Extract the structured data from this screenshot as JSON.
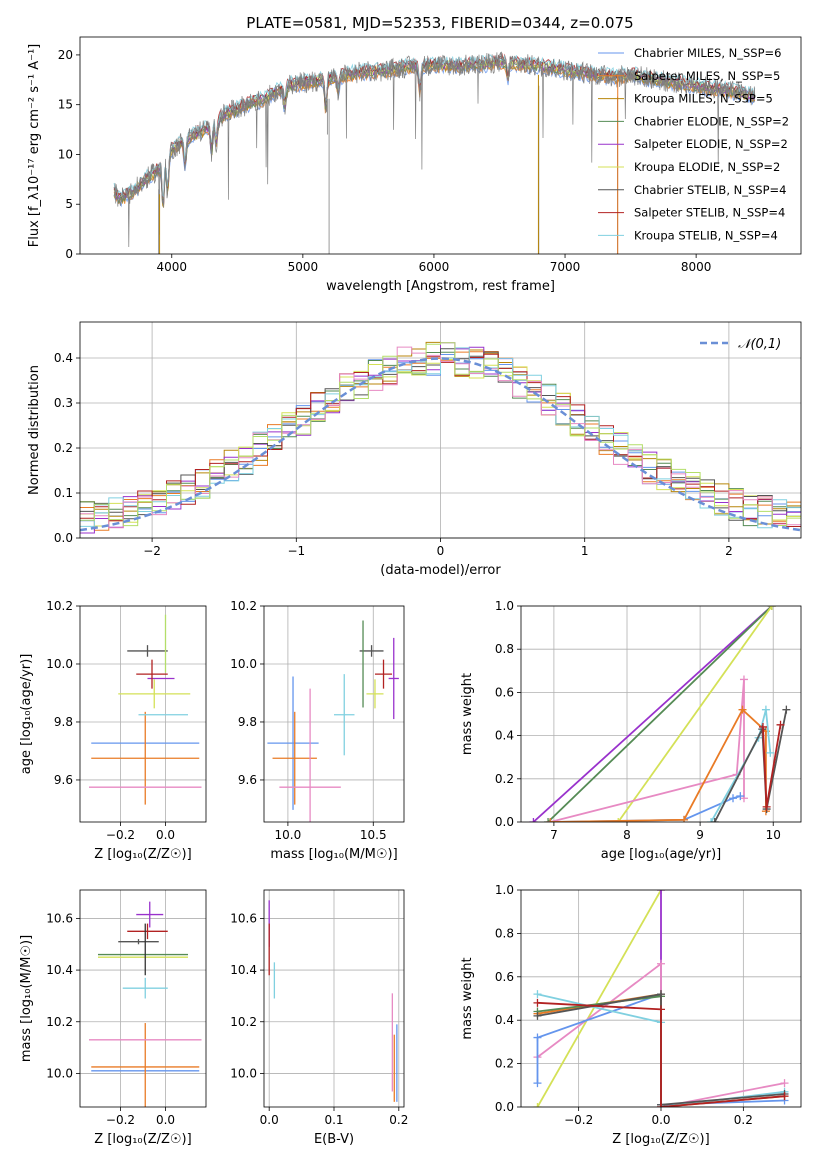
{
  "page": {
    "title": "PLATE=0581, MJD=52353, FIBERID=0344, z=0.075"
  },
  "chart_data": [
    {
      "id": "spectrum",
      "type": "line",
      "title": "PLATE=0581, MJD=52353, FIBERID=0344, z=0.075",
      "xlabel": "wavelength [Angstrom, rest frame]",
      "ylabel": "Flux [f_λ10⁻¹⁷ erg cm⁻² s⁻¹ A⁻¹]",
      "xlim": [
        3300,
        8800
      ],
      "ylim": [
        0,
        21.8
      ],
      "xticks": [
        "4000",
        "5000",
        "6000",
        "7000",
        "8000"
      ],
      "xtick_values": [
        4000,
        5000,
        6000,
        7000,
        8000
      ],
      "yticks": [
        "0",
        "5",
        "10",
        "15",
        "20"
      ],
      "ytick_values": [
        0,
        5,
        10,
        15,
        20
      ],
      "grid": false,
      "legend_position": "right",
      "data_continuum": {
        "x": [
          3550,
          3600,
          3700,
          3800,
          3900,
          4000,
          4100,
          4200,
          4300,
          4400,
          4500,
          4600,
          4700,
          4800,
          4900,
          5000,
          5100,
          5200,
          5300,
          5400,
          5500,
          5600,
          5700,
          5800,
          5900,
          6000,
          6100,
          6200,
          6300,
          6400,
          6500,
          6600,
          6700,
          6800,
          6900,
          7000,
          7100,
          7200,
          7300,
          7400,
          7500,
          7600,
          7700,
          7800,
          7900,
          8000,
          8100,
          8200,
          8300,
          8400,
          8450
        ],
        "y": [
          6.5,
          5.5,
          6.2,
          7.5,
          8.5,
          10.5,
          11.5,
          12.2,
          12.8,
          14.0,
          14.6,
          15.2,
          15.5,
          16.4,
          17.0,
          17.2,
          17.4,
          17.6,
          17.9,
          18.2,
          18.3,
          18.4,
          18.6,
          18.8,
          18.9,
          19.0,
          19.0,
          18.9,
          19.0,
          19.1,
          19.3,
          19.2,
          19.0,
          18.9,
          18.7,
          18.5,
          18.3,
          18.1,
          17.9,
          17.8,
          18.0,
          17.8,
          17.5,
          17.3,
          17.1,
          16.9,
          16.7,
          16.5,
          16.3,
          16.0,
          15.8
        ]
      },
      "series": [
        {
          "name": "Chabrier MILES, N_SSP=6",
          "color": "#6495ed"
        },
        {
          "name": "Salpeter MILES, N_SSP=5",
          "color": "#e97b26"
        },
        {
          "name": "Kroupa MILES, N_SSP=5",
          "color": "#b8860b"
        },
        {
          "name": "Chabrier ELODIE, N_SSP=2",
          "color": "#558b55"
        },
        {
          "name": "Salpeter ELODIE, N_SSP=2",
          "color": "#9932cc"
        },
        {
          "name": "Kroupa ELODIE, N_SSP=2",
          "color": "#d4e157"
        },
        {
          "name": "Chabrier STELIB, N_SSP=4",
          "color": "#555555"
        },
        {
          "name": "Salpeter STELIB, N_SSP=4",
          "color": "#b22222"
        },
        {
          "name": "Kroupa STELIB, N_SSP=4",
          "color": "#80d0e0"
        }
      ]
    },
    {
      "id": "residuals",
      "type": "histogram",
      "xlabel": "(data-model)/error",
      "ylabel": "Normed distribution",
      "xlim": [
        -2.5,
        2.5
      ],
      "ylim": [
        0,
        0.48
      ],
      "xticks": [
        "−2",
        "−1",
        "0",
        "1",
        "2"
      ],
      "xtick_values": [
        -2,
        -1,
        0,
        1,
        2
      ],
      "yticks": [
        "0.0",
        "0.1",
        "0.2",
        "0.3",
        "0.4"
      ],
      "ytick_values": [
        0,
        0.1,
        0.2,
        0.3,
        0.4
      ],
      "grid": true,
      "legend": {
        "label": "𝒩(0,1)",
        "position": "top-right",
        "color": "#6a8fd6"
      },
      "bin_width": 0.1
    },
    {
      "id": "z-age",
      "type": "errorbar",
      "xlabel": "Z [log₁₀(Z/Z☉)]",
      "ylabel": "age  [log₁₀(age/yr)]",
      "xlim": [
        -0.38,
        0.18
      ],
      "ylim": [
        9.455,
        10.2
      ],
      "xticks": [
        "−0.2",
        "0.0"
      ],
      "xtick_values": [
        -0.2,
        0.0
      ],
      "yticks": [
        "9.6",
        "9.8",
        "10.0",
        "10.2"
      ],
      "ytick_values": [
        9.6,
        9.8,
        10.0,
        10.2
      ],
      "grid": true,
      "points": [
        {
          "x": -0.09,
          "xerr": 0.24,
          "y": 9.727,
          "yerr": 0.0,
          "color": "#6495ed"
        },
        {
          "x": -0.09,
          "xerr": 0.24,
          "y": 9.675,
          "yerr": 0.16,
          "color": "#e97b26"
        },
        {
          "x": -0.09,
          "xerr": 0.25,
          "y": 9.575,
          "yerr": 0.0,
          "color": "#e78ac3"
        },
        {
          "x": -0.01,
          "xerr": 0.11,
          "y": 9.825,
          "yerr": 0.0,
          "color": "#80d0e0"
        },
        {
          "x": -0.05,
          "xerr": 0.16,
          "y": 9.897,
          "yerr": 0.05,
          "color": "#d4e157"
        },
        {
          "x": -0.02,
          "xerr": 0.06,
          "y": 9.95,
          "yerr": 0.0,
          "color": "#9932cc"
        },
        {
          "x": -0.06,
          "xerr": 0.07,
          "y": 9.965,
          "yerr": 0.05,
          "color": "#b22222"
        },
        {
          "x": -0.08,
          "xerr": 0.09,
          "y": 10.045,
          "yerr": 0.02,
          "color": "#555555"
        },
        {
          "x": 0.0,
          "xerr": 0.0,
          "y": 10.07,
          "yerr": 0.1,
          "color": "#b3de69"
        }
      ]
    },
    {
      "id": "mass-age",
      "type": "errorbar",
      "xlabel": "mass [log₁₀(M/M☉)]",
      "ylabel": "",
      "xlim": [
        9.86,
        10.68
      ],
      "ylim": [
        9.455,
        10.2
      ],
      "xticks": [
        "10.0",
        "10.5"
      ],
      "xtick_values": [
        10.0,
        10.5
      ],
      "yticks": [
        "9.6",
        "9.8",
        "10.0",
        "10.2"
      ],
      "ytick_values": [
        9.6,
        9.8,
        10.0,
        10.2
      ],
      "grid": true,
      "points": [
        {
          "x": 10.03,
          "xerr": 0.15,
          "y": 9.727,
          "yerr": 0.23,
          "color": "#6495ed"
        },
        {
          "x": 10.04,
          "xerr": 0.13,
          "y": 9.675,
          "yerr": 0.16,
          "color": "#e97b26"
        },
        {
          "x": 10.13,
          "xerr": 0.18,
          "y": 9.575,
          "yerr": 0.34,
          "color": "#e78ac3"
        },
        {
          "x": 10.33,
          "xerr": 0.06,
          "y": 9.825,
          "yerr": 0.14,
          "color": "#80d0e0"
        },
        {
          "x": 10.51,
          "xerr": 0.05,
          "y": 9.897,
          "yerr": 0.05,
          "color": "#d4e157"
        },
        {
          "x": 10.62,
          "xerr": 0.03,
          "y": 9.95,
          "yerr": 0.14,
          "color": "#9932cc"
        },
        {
          "x": 10.56,
          "xerr": 0.05,
          "y": 9.965,
          "yerr": 0.05,
          "color": "#b22222"
        },
        {
          "x": 10.49,
          "xerr": 0.07,
          "y": 10.045,
          "yerr": 0.02,
          "color": "#555555"
        },
        {
          "x": 10.44,
          "xerr": 0.0,
          "y": 10.0,
          "yerr": 0.15,
          "color": "#558b55"
        }
      ]
    },
    {
      "id": "age-weight",
      "type": "line",
      "xlabel": "age  [log₁₀(age/yr)]",
      "ylabel": "mass weight",
      "xlim": [
        6.55,
        10.38
      ],
      "ylim": [
        0,
        1.0
      ],
      "xticks": [
        "7",
        "8",
        "9",
        "10"
      ],
      "xtick_values": [
        7,
        8,
        9,
        10
      ],
      "yticks": [
        "0.0",
        "0.2",
        "0.4",
        "0.6",
        "0.8",
        "1.0"
      ],
      "ytick_values": [
        0,
        0.2,
        0.4,
        0.6,
        0.8,
        1.0
      ],
      "grid": true,
      "series": [
        {
          "color": "#9932cc",
          "x": [
            6.72,
            9.98
          ],
          "y": [
            0.0,
            1.0
          ]
        },
        {
          "color": "#558b55",
          "x": [
            6.92,
            9.98
          ],
          "y": [
            0.0,
            1.0
          ]
        },
        {
          "color": "#d4e157",
          "x": [
            7.88,
            9.98
          ],
          "y": [
            0.0,
            1.0
          ]
        },
        {
          "color": "#e78ac3",
          "x": [
            6.95,
            9.5,
            9.6,
            9.6
          ],
          "y": [
            0.0,
            0.22,
            0.66,
            0.11
          ]
        },
        {
          "color": "#6495ed",
          "x": [
            6.95,
            8.78,
            9.45,
            9.55
          ],
          "y": [
            0.0,
            0.01,
            0.11,
            0.12
          ]
        },
        {
          "color": "#e97b26",
          "x": [
            6.95,
            8.78,
            9.58,
            9.9,
            9.9
          ],
          "y": [
            0.0,
            0.01,
            0.52,
            0.42,
            0.05
          ]
        },
        {
          "color": "#80d0e0",
          "x": [
            9.15,
            9.8,
            9.9,
            9.96
          ],
          "y": [
            0.0,
            0.39,
            0.52,
            0.32
          ]
        },
        {
          "color": "#555555",
          "x": [
            9.2,
            9.85,
            9.91,
            10.18
          ],
          "y": [
            0.0,
            0.43,
            0.06,
            0.52
          ]
        },
        {
          "color": "#b22222",
          "x": [
            9.86,
            9.91,
            10.1
          ],
          "y": [
            0.44,
            0.07,
            0.45
          ]
        }
      ]
    },
    {
      "id": "z-mass",
      "type": "errorbar",
      "xlabel": "Z [log₁₀(Z/Z☉)]",
      "ylabel": "mass [log₁₀(M/M☉)]",
      "xlim": [
        -0.38,
        0.18
      ],
      "ylim": [
        9.87,
        10.71
      ],
      "xticks": [
        "−0.2",
        "0.0"
      ],
      "xtick_values": [
        -0.2,
        0.0
      ],
      "yticks": [
        "10.0",
        "10.2",
        "10.4",
        "10.6"
      ],
      "ytick_values": [
        10.0,
        10.2,
        10.4,
        10.6
      ],
      "grid": true,
      "points": [
        {
          "x": -0.09,
          "xerr": 0.24,
          "y": 10.01,
          "yerr": 0.0,
          "color": "#6495ed"
        },
        {
          "x": -0.09,
          "xerr": 0.24,
          "y": 10.025,
          "yerr": 0.17,
          "color": "#e97b26"
        },
        {
          "x": -0.09,
          "xerr": 0.25,
          "y": 10.13,
          "yerr": 0.0,
          "color": "#e78ac3"
        },
        {
          "x": -0.09,
          "xerr": 0.1,
          "y": 10.33,
          "yerr": 0.04,
          "color": "#80d0e0"
        },
        {
          "x": -0.1,
          "xerr": 0.2,
          "y": 10.45,
          "yerr": 0.0,
          "color": "#d4e157"
        },
        {
          "x": -0.1,
          "xerr": 0.2,
          "y": 10.46,
          "yerr": 0.0,
          "color": "#558b55"
        },
        {
          "x": -0.08,
          "xerr": 0.09,
          "y": 10.55,
          "yerr": 0.03,
          "color": "#b22222"
        },
        {
          "x": -0.12,
          "xerr": 0.09,
          "y": 10.51,
          "yerr": 0.01,
          "color": "#555555"
        },
        {
          "x": -0.07,
          "xerr": 0.06,
          "y": 10.615,
          "yerr": 0.05,
          "color": "#9932cc"
        },
        {
          "x": -0.09,
          "xerr": 0.0,
          "y": 10.48,
          "yerr": 0.1,
          "color": "#333333"
        }
      ]
    },
    {
      "id": "ebv-mass",
      "type": "errorbar",
      "xlabel": "E(B-V)",
      "ylabel": "",
      "xlim": [
        -0.008,
        0.208
      ],
      "ylim": [
        9.87,
        10.71
      ],
      "xticks": [
        "0.0",
        "0.1",
        "0.2"
      ],
      "xtick_values": [
        0.0,
        0.1,
        0.2
      ],
      "yticks": [
        "10.0",
        "10.2",
        "10.4",
        "10.6"
      ],
      "ytick_values": [
        10.0,
        10.2,
        10.4,
        10.6
      ],
      "grid": true,
      "points": [
        {
          "x": 0.0,
          "xerr": 0.0,
          "y": 10.58,
          "yerr": 0.09,
          "color": "#9932cc"
        },
        {
          "x": 0.0,
          "xerr": 0.0,
          "y": 10.48,
          "yerr": 0.1,
          "color": "#b22222"
        },
        {
          "x": 0.008,
          "xerr": 0.0,
          "y": 10.36,
          "yerr": 0.07,
          "color": "#80d0e0"
        },
        {
          "x": 0.19,
          "xerr": 0.0,
          "y": 10.12,
          "yerr": 0.19,
          "color": "#e78ac3"
        },
        {
          "x": 0.193,
          "xerr": 0.0,
          "y": 10.02,
          "yerr": 0.13,
          "color": "#e97b26"
        },
        {
          "x": 0.197,
          "xerr": 0.0,
          "y": 10.04,
          "yerr": 0.15,
          "color": "#6495ed"
        }
      ]
    },
    {
      "id": "z-weight",
      "type": "line",
      "xlabel": "Z [log₁₀(Z/Z☉)]",
      "ylabel": "mass weight",
      "xlim": [
        -0.34,
        0.34
      ],
      "ylim": [
        0,
        1.0
      ],
      "xticks": [
        "−0.2",
        "0.0",
        "0.2"
      ],
      "xtick_values": [
        -0.2,
        0.0,
        0.2
      ],
      "yticks": [
        "0.0",
        "0.2",
        "0.4",
        "0.6",
        "0.8",
        "1.0"
      ],
      "ytick_values": [
        0,
        0.2,
        0.4,
        0.6,
        0.8,
        1.0
      ],
      "grid": true,
      "series": [
        {
          "color": "#d4e157",
          "x": [
            -0.3,
            0.0
          ],
          "y": [
            0.0,
            1.0
          ]
        },
        {
          "color": "#9932cc",
          "x": [
            0.0,
            0.0
          ],
          "y": [
            0.0,
            1.0
          ]
        },
        {
          "color": "#e78ac3",
          "x": [
            -0.3,
            0.0,
            0.0,
            0.3
          ],
          "y": [
            0.23,
            0.66,
            0.0,
            0.11
          ]
        },
        {
          "color": "#6495ed",
          "x": [
            -0.3,
            -0.3,
            0.0,
            0.0,
            0.3
          ],
          "y": [
            0.11,
            0.32,
            0.52,
            0.01,
            0.03
          ]
        },
        {
          "color": "#80d0e0",
          "x": [
            -0.3,
            0.0,
            0.0,
            0.3
          ],
          "y": [
            0.52,
            0.39,
            0.0,
            0.07
          ]
        },
        {
          "color": "#e97b26",
          "x": [
            -0.3,
            0.0,
            0.0,
            0.3
          ],
          "y": [
            0.43,
            0.52,
            0.0,
            0.05
          ]
        },
        {
          "color": "#558b55",
          "x": [
            -0.3,
            0.0
          ],
          "y": [
            0.44,
            0.51
          ]
        },
        {
          "color": "#555555",
          "x": [
            -0.3,
            0.0,
            0.0,
            0.3
          ],
          "y": [
            0.42,
            0.52,
            0.01,
            0.06
          ]
        },
        {
          "color": "#b22222",
          "x": [
            -0.3,
            0.0,
            0.0,
            0.3
          ],
          "y": [
            0.48,
            0.45,
            0.0,
            0.05
          ]
        }
      ]
    }
  ]
}
